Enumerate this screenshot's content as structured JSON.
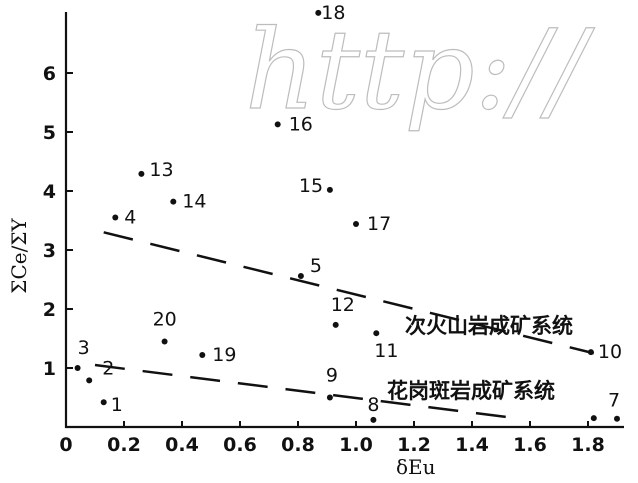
{
  "chart_data": {
    "type": "scatter",
    "title": "",
    "xlabel": "δEu",
    "ylabel": "ΣCe/ΣY",
    "xlim": [
      0,
      1.9
    ],
    "ylim": [
      0,
      7
    ],
    "x_ticks": [
      "0",
      "0.2",
      "0.4",
      "0.6",
      "0.8",
      "1.0",
      "1.2",
      "1.4",
      "1.6",
      "1.8"
    ],
    "x_tick_values": [
      0,
      0.2,
      0.4,
      0.6,
      0.8,
      1.0,
      1.2,
      1.4,
      1.6,
      1.8
    ],
    "y_ticks": [
      "1",
      "2",
      "3",
      "4",
      "5",
      "6"
    ],
    "y_tick_values": [
      1,
      2,
      3,
      4,
      5,
      6
    ],
    "grid": false,
    "points": [
      {
        "label": "1",
        "x": 0.13,
        "y": 0.42
      },
      {
        "label": "2",
        "x": 0.08,
        "y": 0.79
      },
      {
        "label": "3",
        "x": 0.04,
        "y": 1.0
      },
      {
        "label": "4",
        "x": 0.17,
        "y": 3.55
      },
      {
        "label": "5",
        "x": 0.81,
        "y": 2.56
      },
      {
        "label": "7",
        "x": 1.9,
        "y": 0.14
      },
      {
        "label": "8",
        "x": 1.06,
        "y": 0.12
      },
      {
        "label": "9",
        "x": 0.91,
        "y": 0.5
      },
      {
        "label": "10",
        "x": 1.81,
        "y": 1.27
      },
      {
        "label": "11",
        "x": 1.07,
        "y": 1.59
      },
      {
        "label": "12",
        "x": 0.93,
        "y": 1.73
      },
      {
        "label": "13",
        "x": 0.26,
        "y": 4.29
      },
      {
        "label": "14",
        "x": 0.37,
        "y": 3.82
      },
      {
        "label": "15",
        "x": 0.91,
        "y": 4.02
      },
      {
        "label": "16",
        "x": 0.73,
        "y": 5.13
      },
      {
        "label": "17",
        "x": 1.0,
        "y": 3.44
      },
      {
        "label": "18",
        "x": 0.87,
        "y": 7.02
      },
      {
        "label": "19",
        "x": 0.47,
        "y": 1.22
      },
      {
        "label": "20",
        "x": 0.34,
        "y": 1.45
      },
      {
        "label": "",
        "x": 1.82,
        "y": 0.15
      }
    ],
    "trend_lines": [
      {
        "name": "次火山岩成矿系统",
        "x": [
          0.13,
          1.82
        ],
        "y": [
          3.3,
          1.25
        ]
      },
      {
        "name": "花岗斑岩成矿系统",
        "x": [
          0.1,
          1.55
        ],
        "y": [
          1.05,
          0.15
        ]
      }
    ],
    "annotations": [
      "次火山岩成矿系统",
      "花岗斑岩成矿系统"
    ],
    "watermark": "http://"
  }
}
